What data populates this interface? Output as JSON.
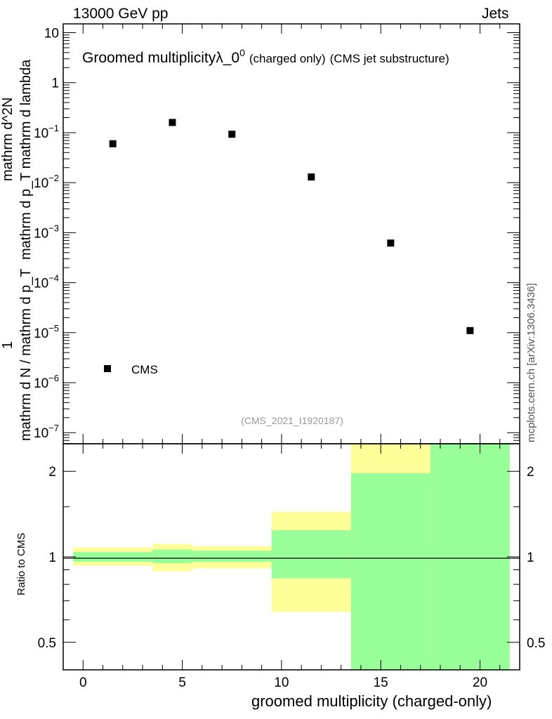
{
  "header": {
    "energy_label": "13000 GeV pp",
    "process_label": "Jets"
  },
  "side_label": "mcplots.cern.ch [arXiv:1306.3436]",
  "watermark": "(CMS_2021_I1920187)",
  "colors": {
    "ratio_band_inner": "#99ff99",
    "ratio_band_outer": "#ffff99",
    "marker": "#000000"
  },
  "chart_data": [
    {
      "type": "scatter",
      "title_main": "Groomed multiplicity",
      "title_lambda": "λ_0",
      "title_superscript": "0",
      "title_charged": "(charged only)",
      "title_source": "(CMS jet substructure)",
      "ylabel": {
        "numerator_one": "1",
        "denominator_one": "mathrm d N / mathrm d p_T",
        "numerator_two": "mathrm d^2N",
        "denominator_two": "mathrm d p_T mathrm d lambda"
      },
      "yscale": "log",
      "ylim": [
        6e-08,
        15
      ],
      "ytick_labels": [
        "10^-7",
        "10^-6",
        "10^-5",
        "10^-4",
        "10^-3",
        "10^-2",
        "10^-1",
        "1",
        "10"
      ],
      "series": [
        {
          "name": "CMS",
          "marker": "square",
          "x": [
            1.5,
            4.5,
            7.5,
            11.5,
            15.5,
            19.5
          ],
          "y": [
            0.06,
            0.16,
            0.093,
            0.013,
            0.00062,
            1.1e-05
          ]
        }
      ],
      "legend": [
        {
          "label": "CMS",
          "position": "bottom-left"
        }
      ]
    },
    {
      "type": "area",
      "ylabel": "Ratio to CMS",
      "xlabel": "groomed multiplicity (charged-only)",
      "xlim": [
        -1,
        22
      ],
      "xticks": [
        "0",
        "5",
        "10",
        "15",
        "20"
      ],
      "yscale": "log",
      "ylim": [
        0.4,
        2.5
      ],
      "yticks": [
        "0.5",
        "1",
        "2"
      ],
      "reference_line": 1,
      "bins": [
        {
          "x_low": -0.5,
          "x_high": 3.5,
          "inner_low": 0.96,
          "inner_high": 1.04,
          "outer_low": 0.93,
          "outer_high": 1.08
        },
        {
          "x_low": 3.5,
          "x_high": 5.5,
          "inner_low": 0.95,
          "inner_high": 1.06,
          "outer_low": 0.89,
          "outer_high": 1.11
        },
        {
          "x_low": 5.5,
          "x_high": 9.5,
          "inner_low": 0.96,
          "inner_high": 1.05,
          "outer_low": 0.91,
          "outer_high": 1.09
        },
        {
          "x_low": 9.5,
          "x_high": 13.5,
          "inner_low": 0.84,
          "inner_high": 1.24,
          "outer_low": 0.64,
          "outer_high": 1.44
        },
        {
          "x_low": 13.5,
          "x_high": 17.5,
          "inner_low": 0.35,
          "inner_high": 1.97,
          "outer_low": 0.35,
          "outer_high": 2.6
        },
        {
          "x_low": 17.5,
          "x_high": 21.5,
          "inner_low": 0.35,
          "inner_high": 2.6,
          "outer_low": 0.35,
          "outer_high": 2.6
        }
      ]
    }
  ]
}
